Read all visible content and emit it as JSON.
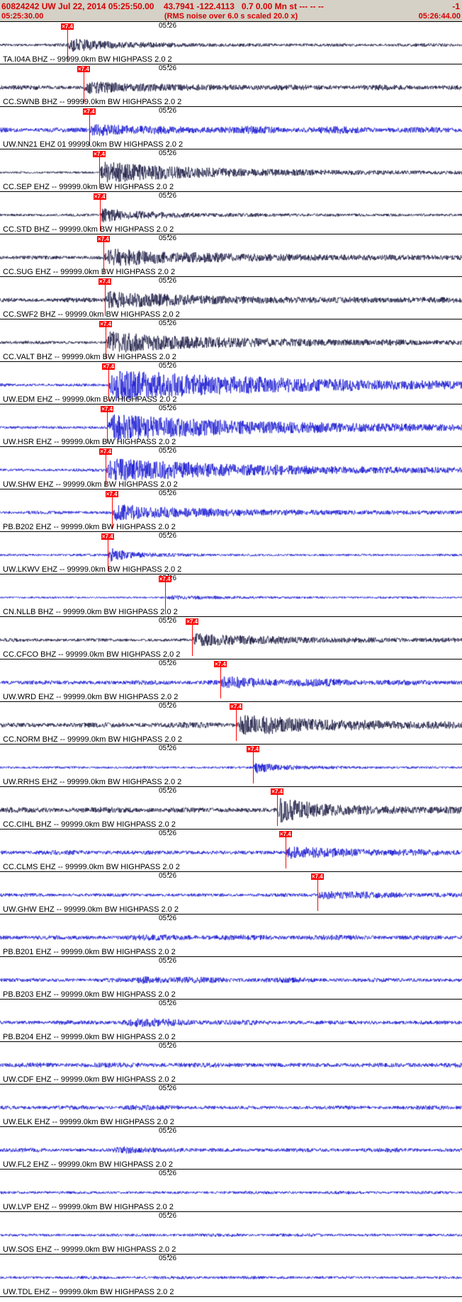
{
  "header": {
    "event_summary": "60824242 UW Jul 22, 2014 05:25:50.00    43.7941 -122.4113   0.7 0.00 Mn st --- -- --",
    "event_summary_right": "-1",
    "window_start": "05:25:30.00",
    "rms_note": "(RMS noise over 6.0 s scaled 20.0 x)",
    "window_end": "05:26:44.00",
    "text_color": "#d40000",
    "bg_color": "#d5d1c6"
  },
  "colors": {
    "blue": "#1212d0",
    "dark": "#12123c",
    "pick": "#ff0000"
  },
  "traces": {
    "minute_label": "05:26",
    "minute_x": 0.3635,
    "pick_flag": "×7.4",
    "rows": [
      {
        "label": "TA.I04A BHZ -- 99999.0km BW HIGHPASS 2.0 2",
        "color": "dark",
        "noise": 1.6,
        "wobble": 0.5,
        "pick": 0.146,
        "burst": 9,
        "decay": 50,
        "rise": 5
      },
      {
        "label": "CC.SWNB BHZ -- 99999.0km BW HIGHPASS 2.0 2",
        "color": "dark",
        "noise": 2.2,
        "wobble": 0.6,
        "pick": 0.181,
        "burst": 7,
        "decay": 90,
        "rise": 6
      },
      {
        "label": "UW.NN21 EHZ 01 99999.0km BW HIGHPASS 2.0 2",
        "color": "blue",
        "noise": 2.6,
        "wobble": 1.0,
        "pick": 0.193,
        "burst": 7,
        "decay": 70,
        "rise": 6
      },
      {
        "label": "CC.SEP EHZ -- 99999.0km BW HIGHPASS 2.0 2",
        "color": "dark",
        "noise": 1.4,
        "wobble": 0.3,
        "pick": 0.215,
        "burst": 15,
        "decay": 110,
        "rise": 6
      },
      {
        "label": "CC.STD BHZ -- 99999.0km BW HIGHPASS 2.0 2",
        "color": "dark",
        "noise": 1.6,
        "wobble": 0.4,
        "pick": 0.216,
        "burst": 10,
        "decay": 45,
        "rise": 4
      },
      {
        "label": "CC.SUG EHZ -- 99999.0km BW HIGHPASS 2.0 2",
        "color": "dark",
        "noise": 2.0,
        "wobble": 0.6,
        "pick": 0.224,
        "burst": 10,
        "decay": 140,
        "rise": 6
      },
      {
        "label": "CC.SWF2 BHZ -- 99999.0km BW HIGHPASS 2.0 2",
        "color": "dark",
        "noise": 2.2,
        "wobble": 0.5,
        "pick": 0.227,
        "burst": 11,
        "decay": 110,
        "rise": 6
      },
      {
        "label": "CC.VALT BHZ -- 99999.0km BW HIGHPASS 2.0 2",
        "color": "dark",
        "noise": 1.8,
        "wobble": 0.4,
        "pick": 0.229,
        "burst": 14,
        "decay": 130,
        "rise": 6
      },
      {
        "label": "UW.EDM EHZ -- 99999.0km BW HIGHPASS 2.0 2",
        "color": "blue",
        "noise": 1.8,
        "wobble": 0.4,
        "pick": 0.235,
        "burst": 22,
        "decay": 190,
        "rise": 7
      },
      {
        "label": "UW.HSR EHZ -- 99999.0km BW HIGHPASS 2.0 2",
        "color": "blue",
        "noise": 1.8,
        "wobble": 0.4,
        "pick": 0.232,
        "burst": 18,
        "decay": 170,
        "rise": 7
      },
      {
        "label": "UW.SHW EHZ -- 99999.0km BW HIGHPASS 2.0 2",
        "color": "blue",
        "noise": 1.8,
        "wobble": 0.4,
        "pick": 0.229,
        "burst": 16,
        "decay": 150,
        "rise": 7
      },
      {
        "label": "PB.B202 EHZ -- 99999.0km BW HIGHPASS 2.0 2",
        "color": "blue",
        "noise": 1.8,
        "wobble": 0.4,
        "pick": 0.242,
        "burst": 10,
        "decay": 110,
        "rise": 6
      },
      {
        "label": "UW.LKWV EHZ -- 99999.0km BW HIGHPASS 2.0 2",
        "color": "blue",
        "noise": 1.4,
        "wobble": 0.3,
        "pick": 0.233,
        "burst": 10,
        "decay": 22,
        "rise": 4
      },
      {
        "label": "CN.NLLB BHZ -- 99999.0km BW HIGHPASS 2.0 2",
        "color": "blue",
        "noise": 1.1,
        "wobble": 0.3,
        "pick": 0.357,
        "burst": 2.5,
        "decay": 70,
        "rise": 6
      },
      {
        "label": "CC.CFCO BHZ -- 99999.0km BW HIGHPASS 2.0 2",
        "color": "dark",
        "noise": 1.9,
        "wobble": 0.5,
        "pick": 0.416,
        "burst": 8,
        "decay": 90,
        "rise": 6
      },
      {
        "label": "UW.WRD EHZ -- 99999.0km BW HIGHPASS 2.0 2",
        "color": "blue",
        "noise": 2.4,
        "wobble": 1.0,
        "pick": 0.477,
        "burst": 5,
        "decay": 70,
        "rise": 6
      },
      {
        "label": "CC.NORM BHZ -- 99999.0km BW HIGHPASS 2.0 2",
        "color": "dark",
        "noise": 2.8,
        "wobble": 0.6,
        "pick": 0.511,
        "burst": 12,
        "decay": 110,
        "rise": 7
      },
      {
        "label": "UW.RRHS EHZ -- 99999.0km BW HIGHPASS 2.0 2",
        "color": "blue",
        "noise": 1.4,
        "wobble": 0.4,
        "pick": 0.548,
        "burst": 8,
        "decay": 26,
        "rise": 4
      },
      {
        "label": "CC.CIHL BHZ -- 99999.0km BW HIGHPASS 2.0 2",
        "color": "dark",
        "noise": 2.8,
        "wobble": 0.5,
        "pick": 0.6,
        "burst": 16,
        "decay": 55,
        "rise": 5
      },
      {
        "label": "CC.CLMS EHZ -- 99999.0km BW HIGHPASS 2.0 2",
        "color": "blue",
        "noise": 2.4,
        "wobble": 0.5,
        "pick": 0.618,
        "burst": 7,
        "decay": 70,
        "rise": 5
      },
      {
        "label": "UW.GHW EHZ -- 99999.0km BW HIGHPASS 2.0 2",
        "color": "blue",
        "noise": 1.9,
        "wobble": 0.6,
        "pick": 0.687,
        "burst": 5,
        "decay": 55,
        "rise": 5
      },
      {
        "label": "PB.B201 EHZ -- 99999.0km BW HIGHPASS 2.0 2",
        "color": "blue",
        "noise": 2.6,
        "wobble": 0.5,
        "bump": {
          "x": 0.27,
          "amp": 2.0,
          "decay": 80
        }
      },
      {
        "label": "PB.B203 EHZ -- 99999.0km BW HIGHPASS 2.0 2",
        "color": "blue",
        "noise": 2.3,
        "wobble": 0.7,
        "bump": {
          "x": 0.28,
          "amp": 4.0,
          "decay": 60
        }
      },
      {
        "label": "PB.B204 EHZ -- 99999.0km BW HIGHPASS 2.0 2",
        "color": "blue",
        "noise": 2.3,
        "wobble": 0.7,
        "bump": {
          "x": 0.26,
          "amp": 4.5,
          "decay": 70
        }
      },
      {
        "label": "UW.CDF EHZ -- 99999.0km BW HIGHPASS 2.0 2",
        "color": "blue",
        "noise": 2.7,
        "wobble": 0.4
      },
      {
        "label": "UW.ELK EHZ -- 99999.0km BW HIGHPASS 2.0 2",
        "color": "blue",
        "noise": 2.1,
        "wobble": 0.5,
        "bump": {
          "x": 0.26,
          "amp": 2.5,
          "decay": 50
        }
      },
      {
        "label": "UW.FL2 EHZ -- 99999.0km BW HIGHPASS 2.0 2",
        "color": "blue",
        "noise": 2.1,
        "wobble": 0.5,
        "bump": {
          "x": 0.24,
          "amp": 4.0,
          "decay": 55
        }
      },
      {
        "label": "UW.LVP EHZ -- 99999.0km BW HIGHPASS 2.0 2",
        "color": "blue",
        "noise": 1.7,
        "wobble": 0.4
      },
      {
        "label": "UW.SOS EHZ -- 99999.0km BW HIGHPASS 2.0 2",
        "color": "blue",
        "noise": 1.7,
        "wobble": 0.4
      },
      {
        "label": "UW.TDL EHZ -- 99999.0km BW HIGHPASS 2.0 2",
        "color": "blue",
        "noise": 1.7,
        "wobble": 0.4
      }
    ]
  }
}
